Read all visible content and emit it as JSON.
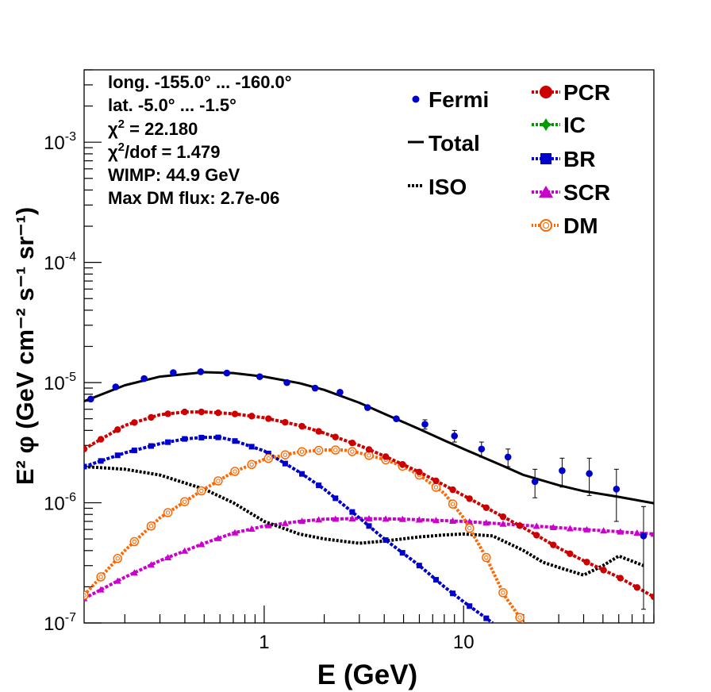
{
  "chart_data": {
    "type": "line",
    "xscale": "log",
    "yscale": "log",
    "xlim": [
      0.125,
      90
    ],
    "ylim": [
      1e-07,
      0.004
    ],
    "xlabel": "E (GeV)",
    "ylabel": "E² φ (GeV cm⁻² s⁻¹ sr⁻¹)",
    "x_tick_labels": [
      "1",
      "10"
    ],
    "x_ticks": [
      1,
      10
    ],
    "y_ticks": [
      {
        "value": 1e-07,
        "base": "10",
        "exp": "-7"
      },
      {
        "value": 1e-06,
        "base": "10",
        "exp": "-6"
      },
      {
        "value": 1e-05,
        "base": "10",
        "exp": "-5"
      },
      {
        "value": 0.0001,
        "base": "10",
        "exp": "-4"
      },
      {
        "value": 0.001,
        "base": "10",
        "exp": "-3"
      }
    ],
    "info": {
      "longitude": "long. -155.0° ... -160.0°",
      "latitude": "lat. -5.0° ... -1.5°",
      "chi2_prefix": "χ",
      "chi2_sup": "2",
      "chi2_value": " = 22.180",
      "chi2dof_prefix": "χ",
      "chi2dof_sup": "2",
      "chi2dof_value": "/dof = 1.479",
      "wimp": "WIMP: 44.9 GeV",
      "max_dm_flux": "Max DM flux: 2.7e-06"
    },
    "legend": {
      "left": [
        {
          "label": "Fermi",
          "key": "fermi"
        },
        {
          "label": "Total",
          "key": "total"
        },
        {
          "label": "ISO",
          "key": "iso"
        }
      ],
      "right": [
        {
          "label": "PCR",
          "key": "pcr"
        },
        {
          "label": "IC",
          "key": "ic"
        },
        {
          "label": "BR",
          "key": "br"
        },
        {
          "label": "SCR",
          "key": "scr"
        },
        {
          "label": "DM",
          "key": "dm"
        }
      ]
    },
    "series": [
      {
        "name": "Total",
        "key": "total",
        "color": "#000000",
        "style": "solid",
        "x": [
          0.125,
          0.2,
          0.3,
          0.5,
          0.7,
          1.0,
          1.5,
          2.0,
          3.0,
          4.0,
          6.0,
          8.0,
          10,
          15,
          20,
          30,
          40,
          60,
          90
        ],
        "y": [
          7e-06,
          9.5e-06,
          1.12e-05,
          1.22e-05,
          1.2e-05,
          1.12e-05,
          9.9e-06,
          8.7e-06,
          6.8e-06,
          5.5e-06,
          4.1e-06,
          3.3e-06,
          2.8e-06,
          2.1e-06,
          1.7e-06,
          1.4e-06,
          1.25e-06,
          1.12e-06,
          9.9e-07
        ]
      },
      {
        "name": "PCR",
        "key": "pcr",
        "color": "#cc0000",
        "style": "dashed",
        "x": [
          0.125,
          0.2,
          0.3,
          0.4,
          0.5,
          0.7,
          1.0,
          1.5,
          2.0,
          3.0,
          4.0,
          6.0,
          8.0,
          10,
          15,
          20,
          30,
          40,
          60,
          90
        ],
        "y": [
          2.8e-06,
          4.4e-06,
          5.4e-06,
          5.7e-06,
          5.7e-06,
          5.5e-06,
          5.1e-06,
          4.4e-06,
          3.8e-06,
          3e-06,
          2.45e-06,
          1.8e-06,
          1.4e-06,
          1.15e-06,
          8e-07,
          6.2e-07,
          4.2e-07,
          3.3e-07,
          2.4e-07,
          1.65e-07
        ]
      },
      {
        "name": "BR",
        "key": "br",
        "color": "#0000cc",
        "style": "dashed",
        "x": [
          0.125,
          0.2,
          0.3,
          0.4,
          0.5,
          0.6,
          0.7,
          1.0,
          1.5,
          2.0,
          3.0,
          4.0,
          6.0,
          8.0,
          10,
          14
        ],
        "y": [
          2e-06,
          2.6e-06,
          3.1e-06,
          3.4e-06,
          3.5e-06,
          3.5e-06,
          3.3e-06,
          2.7e-06,
          1.8e-06,
          1.3e-06,
          7.5e-07,
          5e-07,
          3e-07,
          2e-07,
          1.5e-07,
          1e-07
        ]
      },
      {
        "name": "SCR",
        "key": "scr",
        "color": "#cc00cc",
        "style": "dashed",
        "x": [
          0.125,
          0.2,
          0.3,
          0.5,
          0.7,
          1.0,
          1.5,
          2.0,
          3.0,
          5.0,
          10,
          20,
          40,
          90
        ],
        "y": [
          1.6e-07,
          2.4e-07,
          3.3e-07,
          4.6e-07,
          5.6e-07,
          6.4e-07,
          7e-07,
          7.3e-07,
          7.4e-07,
          7.3e-07,
          7e-07,
          6.5e-07,
          6e-07,
          5.5e-07
        ]
      },
      {
        "name": "DM",
        "key": "dm",
        "color": "#ff6600",
        "style": "dotted",
        "x": [
          0.125,
          0.2,
          0.3,
          0.5,
          0.7,
          1.0,
          1.5,
          2.0,
          2.5,
          3.0,
          4.0,
          5.0,
          6.0,
          8.0,
          10,
          13,
          16,
          20
        ],
        "y": [
          1.7e-07,
          4e-07,
          7.5e-07,
          1.3e-06,
          1.8e-06,
          2.3e-06,
          2.65e-06,
          2.75e-06,
          2.75e-06,
          2.6e-06,
          2.3e-06,
          2e-06,
          1.7e-06,
          1.2e-06,
          7.5e-07,
          3.5e-07,
          1.7e-07,
          1e-07
        ]
      },
      {
        "name": "ISO",
        "key": "iso",
        "color": "#000000",
        "style": "dotted",
        "x": [
          0.125,
          0.2,
          0.3,
          0.5,
          0.7,
          1.0,
          1.5,
          2.0,
          3.0,
          4.0,
          6.0,
          8.0,
          10,
          14,
          20,
          25,
          30,
          40,
          50,
          60,
          80
        ],
        "y": [
          2e-06,
          1.9e-06,
          1.7e-06,
          1.3e-06,
          1e-06,
          7e-07,
          5.5e-07,
          5e-07,
          4.6e-07,
          4.8e-07,
          5.2e-07,
          5.4e-07,
          5.5e-07,
          5.3e-07,
          4e-07,
          3.2e-07,
          2.9e-07,
          2.5e-07,
          3e-07,
          3.6e-07,
          3e-07
        ]
      }
    ],
    "fermi": {
      "name": "Fermi",
      "color": "#0000cc",
      "points": [
        {
          "x": 0.135,
          "y": 7.3e-06,
          "err": 0
        },
        {
          "x": 0.18,
          "y": 9.2e-06,
          "err": 0
        },
        {
          "x": 0.25,
          "y": 1.08e-05,
          "err": 0
        },
        {
          "x": 0.35,
          "y": 1.21e-05,
          "err": 0
        },
        {
          "x": 0.48,
          "y": 1.23e-05,
          "err": 0
        },
        {
          "x": 0.65,
          "y": 1.2e-05,
          "err": 0
        },
        {
          "x": 0.95,
          "y": 1.12e-05,
          "err": 0
        },
        {
          "x": 1.3,
          "y": 1e-05,
          "err": 0
        },
        {
          "x": 1.8,
          "y": 9e-06,
          "err": 0
        },
        {
          "x": 2.4,
          "y": 8.3e-06,
          "err": 0
        },
        {
          "x": 3.3,
          "y": 6.2e-06,
          "err": 0
        },
        {
          "x": 4.6,
          "y": 5e-06,
          "err": 0
        },
        {
          "x": 6.4,
          "y": 4.5e-06,
          "err": 4e-07
        },
        {
          "x": 9.0,
          "y": 3.6e-06,
          "err": 4e-07
        },
        {
          "x": 12.3,
          "y": 2.8e-06,
          "err": 4e-07
        },
        {
          "x": 16.7,
          "y": 2.4e-06,
          "err": 4e-07
        },
        {
          "x": 22.8,
          "y": 1.5e-06,
          "err": 4e-07
        },
        {
          "x": 31.2,
          "y": 1.85e-06,
          "err": 5e-07
        },
        {
          "x": 42.7,
          "y": 1.75e-06,
          "err": 6e-07
        },
        {
          "x": 58.4,
          "y": 1.3e-06,
          "err": 6e-07
        },
        {
          "x": 79.9,
          "y": 5.3e-07,
          "err": 4e-07
        }
      ]
    }
  },
  "colors": {
    "pcr": "#cc0000",
    "ic": "#009900",
    "br": "#0000cc",
    "scr": "#cc00cc",
    "dm": "#ff6600",
    "fermi": "#0000cc",
    "total": "#000000",
    "iso": "#000000"
  }
}
